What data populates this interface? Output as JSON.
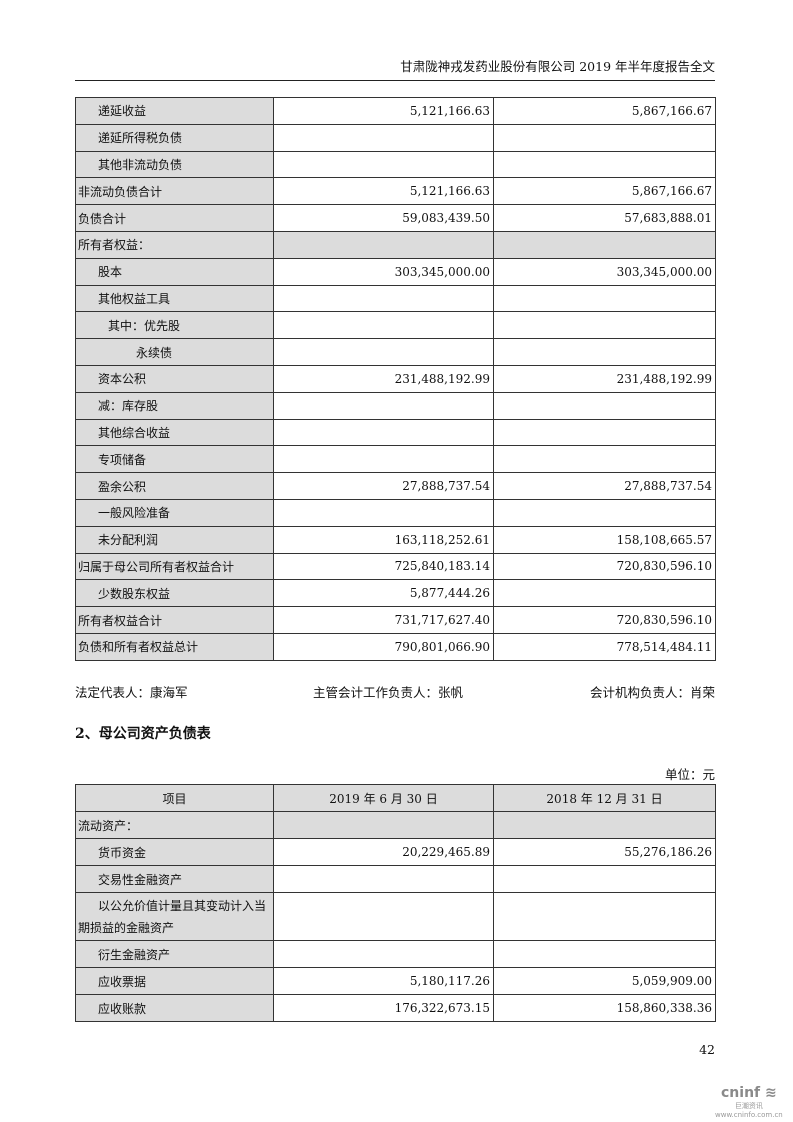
{
  "header": {
    "title": "甘肃陇神戎发药业股份有限公司 2019 年半年度报告全文"
  },
  "table1": {
    "rows": [
      {
        "label": "递延收益",
        "indent": 1,
        "v1": "5,121,166.63",
        "v2": "5,867,166.67"
      },
      {
        "label": "递延所得税负债",
        "indent": 1,
        "v1": "",
        "v2": ""
      },
      {
        "label": "其他非流动负债",
        "indent": 1,
        "v1": "",
        "v2": ""
      },
      {
        "label": "非流动负债合计",
        "indent": 0,
        "v1": "5,121,166.63",
        "v2": "5,867,166.67"
      },
      {
        "label": "负债合计",
        "indent": 0,
        "v1": "59,083,439.50",
        "v2": "57,683,888.01"
      },
      {
        "label": "所有者权益：",
        "indent": 0,
        "v1": "",
        "v2": "",
        "gray": true
      },
      {
        "label": "股本",
        "indent": 1,
        "v1": "303,345,000.00",
        "v2": "303,345,000.00"
      },
      {
        "label": "其他权益工具",
        "indent": 1,
        "v1": "",
        "v2": ""
      },
      {
        "label": "其中：优先股",
        "indent": 2,
        "v1": "",
        "v2": ""
      },
      {
        "label": "永续债",
        "indent": 3,
        "v1": "",
        "v2": ""
      },
      {
        "label": "资本公积",
        "indent": 1,
        "v1": "231,488,192.99",
        "v2": "231,488,192.99"
      },
      {
        "label": "减：库存股",
        "indent": 1,
        "v1": "",
        "v2": ""
      },
      {
        "label": "其他综合收益",
        "indent": 1,
        "v1": "",
        "v2": ""
      },
      {
        "label": "专项储备",
        "indent": 1,
        "v1": "",
        "v2": ""
      },
      {
        "label": "盈余公积",
        "indent": 1,
        "v1": "27,888,737.54",
        "v2": "27,888,737.54"
      },
      {
        "label": "一般风险准备",
        "indent": 1,
        "v1": "",
        "v2": ""
      },
      {
        "label": "未分配利润",
        "indent": 1,
        "v1": "163,118,252.61",
        "v2": "158,108,665.57"
      },
      {
        "label": "归属于母公司所有者权益合计",
        "indent": 0,
        "v1": "725,840,183.14",
        "v2": "720,830,596.10"
      },
      {
        "label": "少数股东权益",
        "indent": 1,
        "v1": "5,877,444.26",
        "v2": ""
      },
      {
        "label": "所有者权益合计",
        "indent": 0,
        "v1": "731,717,627.40",
        "v2": "720,830,596.10"
      },
      {
        "label": "负债和所有者权益总计",
        "indent": 0,
        "v1": "790,801,066.90",
        "v2": "778,514,484.11"
      }
    ]
  },
  "signatures": {
    "legal": "法定代表人：康海军",
    "accounting": "主管会计工作负责人：张帆",
    "institution": "会计机构负责人：肖荣"
  },
  "section2": {
    "title": "2、母公司资产负债表",
    "unit": "单位：元"
  },
  "table2": {
    "headers": [
      "项目",
      "2019 年 6 月 30 日",
      "2018 年 12 月 31 日"
    ],
    "rows": [
      {
        "label": "流动资产：",
        "indent": 0,
        "v1": "",
        "v2": "",
        "gray": true
      },
      {
        "label": "货币资金",
        "indent": 1,
        "v1": "20,229,465.89",
        "v2": "55,276,186.26"
      },
      {
        "label": "交易性金融资产",
        "indent": 1,
        "v1": "",
        "v2": ""
      },
      {
        "label": "以公允价值计量且其变动计入当期损益的金融资产",
        "indent": 1,
        "v1": "",
        "v2": "",
        "wrap": true
      },
      {
        "label": "衍生金融资产",
        "indent": 1,
        "v1": "",
        "v2": ""
      },
      {
        "label": "应收票据",
        "indent": 1,
        "v1": "5,180,117.26",
        "v2": "5,059,909.00"
      },
      {
        "label": "应收账款",
        "indent": 1,
        "v1": "176,322,673.15",
        "v2": "158,860,338.36"
      }
    ]
  },
  "page_number": "42",
  "watermark": {
    "brand": "cninf",
    "cn": "巨潮资讯",
    "url": "www.cninfo.com.cn"
  }
}
